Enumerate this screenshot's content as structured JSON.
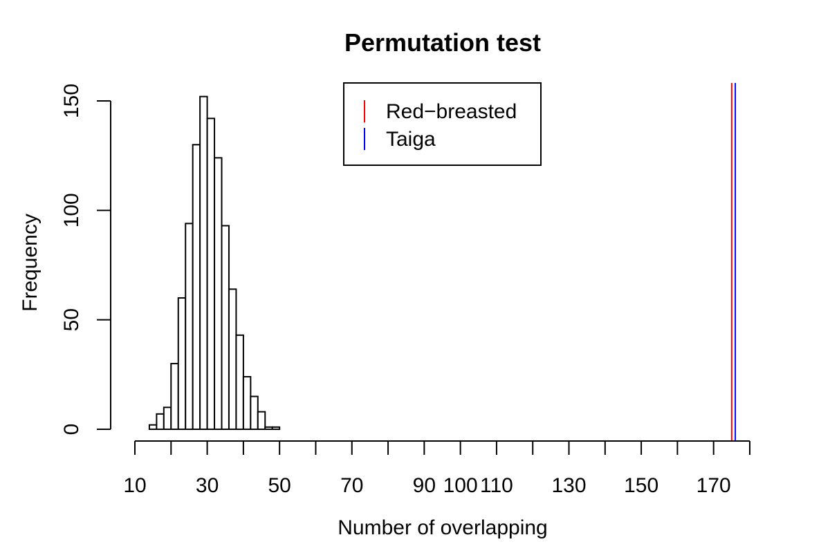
{
  "chart_data": {
    "type": "bar",
    "title": "Permutation test",
    "xlabel": "Number of overlapping",
    "ylabel": "Frequency",
    "xlim": [
      10,
      180
    ],
    "ylim": [
      0,
      160
    ],
    "x_ticks": [
      10,
      30,
      50,
      70,
      90,
      100,
      110,
      130,
      150,
      170
    ],
    "x_tick_marks": [
      10,
      20,
      30,
      40,
      50,
      60,
      70,
      80,
      90,
      100,
      110,
      120,
      130,
      140,
      150,
      160,
      170,
      180
    ],
    "y_ticks": [
      0,
      50,
      100,
      150
    ],
    "bin_width": 2,
    "bins": [
      {
        "start": 14,
        "end": 16,
        "count": 2
      },
      {
        "start": 16,
        "end": 18,
        "count": 7
      },
      {
        "start": 18,
        "end": 20,
        "count": 10
      },
      {
        "start": 20,
        "end": 22,
        "count": 30
      },
      {
        "start": 22,
        "end": 24,
        "count": 60
      },
      {
        "start": 24,
        "end": 26,
        "count": 94
      },
      {
        "start": 26,
        "end": 28,
        "count": 130
      },
      {
        "start": 28,
        "end": 30,
        "count": 152
      },
      {
        "start": 30,
        "end": 32,
        "count": 142
      },
      {
        "start": 32,
        "end": 34,
        "count": 124
      },
      {
        "start": 34,
        "end": 36,
        "count": 93
      },
      {
        "start": 36,
        "end": 38,
        "count": 64
      },
      {
        "start": 38,
        "end": 40,
        "count": 43
      },
      {
        "start": 40,
        "end": 42,
        "count": 24
      },
      {
        "start": 42,
        "end": 44,
        "count": 15
      },
      {
        "start": 44,
        "end": 46,
        "count": 8
      },
      {
        "start": 46,
        "end": 48,
        "count": 1
      },
      {
        "start": 48,
        "end": 50,
        "count": 1
      }
    ],
    "vlines": [
      {
        "name": "Red−breasted",
        "x": 175,
        "color": "#ff0000"
      },
      {
        "name": "Taiga",
        "x": 176,
        "color": "#0000ff"
      }
    ],
    "legend": {
      "placement": "top-center",
      "entries": [
        {
          "label": "Red−breasted",
          "color": "#ff0000"
        },
        {
          "label": "Taiga",
          "color": "#0000ff"
        }
      ]
    },
    "grid": false
  }
}
